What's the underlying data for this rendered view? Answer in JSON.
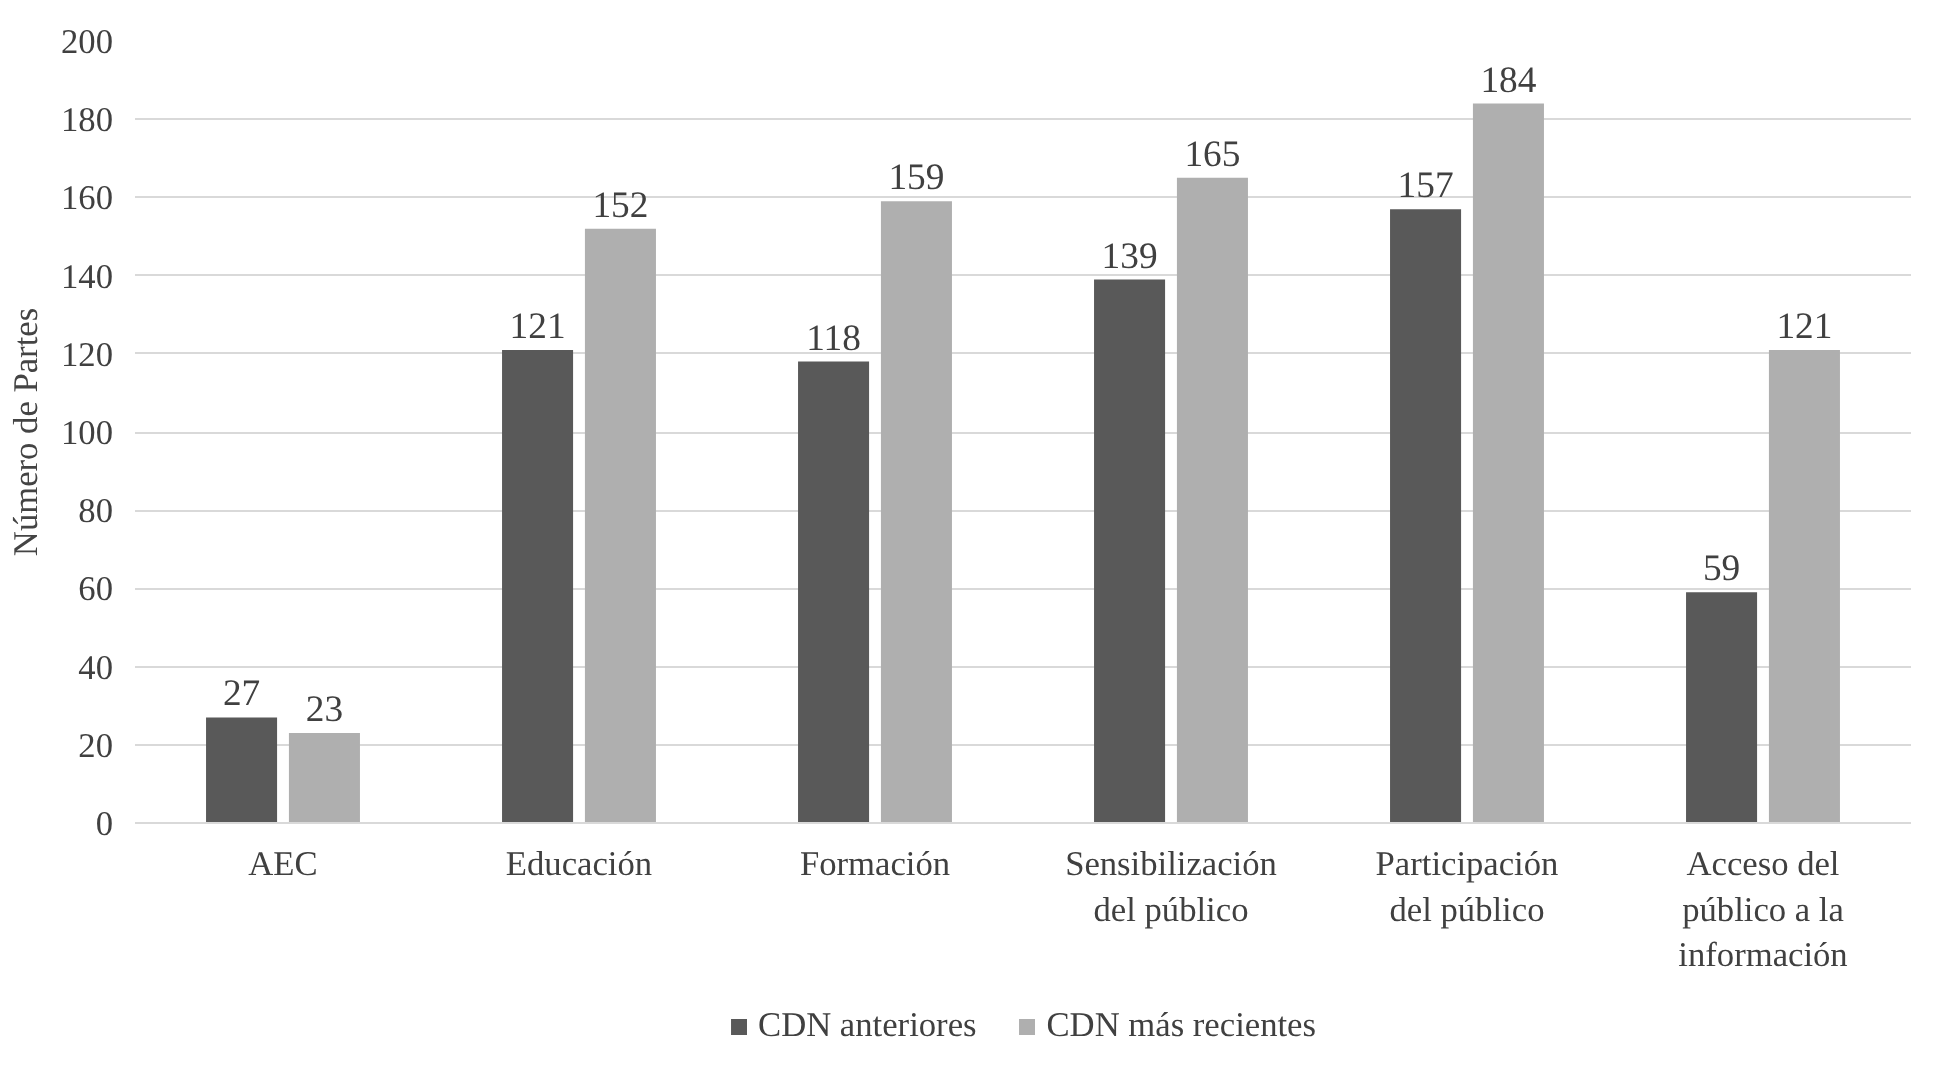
{
  "chart_data": {
    "type": "bar",
    "ylabel": "Número de Partes",
    "categories": [
      "AEC",
      "Educación",
      "Formación",
      "Sensibilización\ndel público",
      "Participación\ndel público",
      "Acceso del\npúblico a la\ninformación"
    ],
    "series": [
      {
        "name": "CDN anteriores",
        "color": "#595959",
        "values": [
          27,
          121,
          118,
          139,
          157,
          59
        ]
      },
      {
        "name": "CDN más recientes",
        "color": "#afafaf",
        "values": [
          23,
          152,
          159,
          165,
          184,
          121
        ]
      }
    ],
    "ylim": [
      0,
      200
    ],
    "yticks": [
      0,
      20,
      40,
      60,
      80,
      100,
      120,
      140,
      160,
      180,
      200
    ],
    "grid": "y",
    "legend": "bottom",
    "data_labels": true
  }
}
